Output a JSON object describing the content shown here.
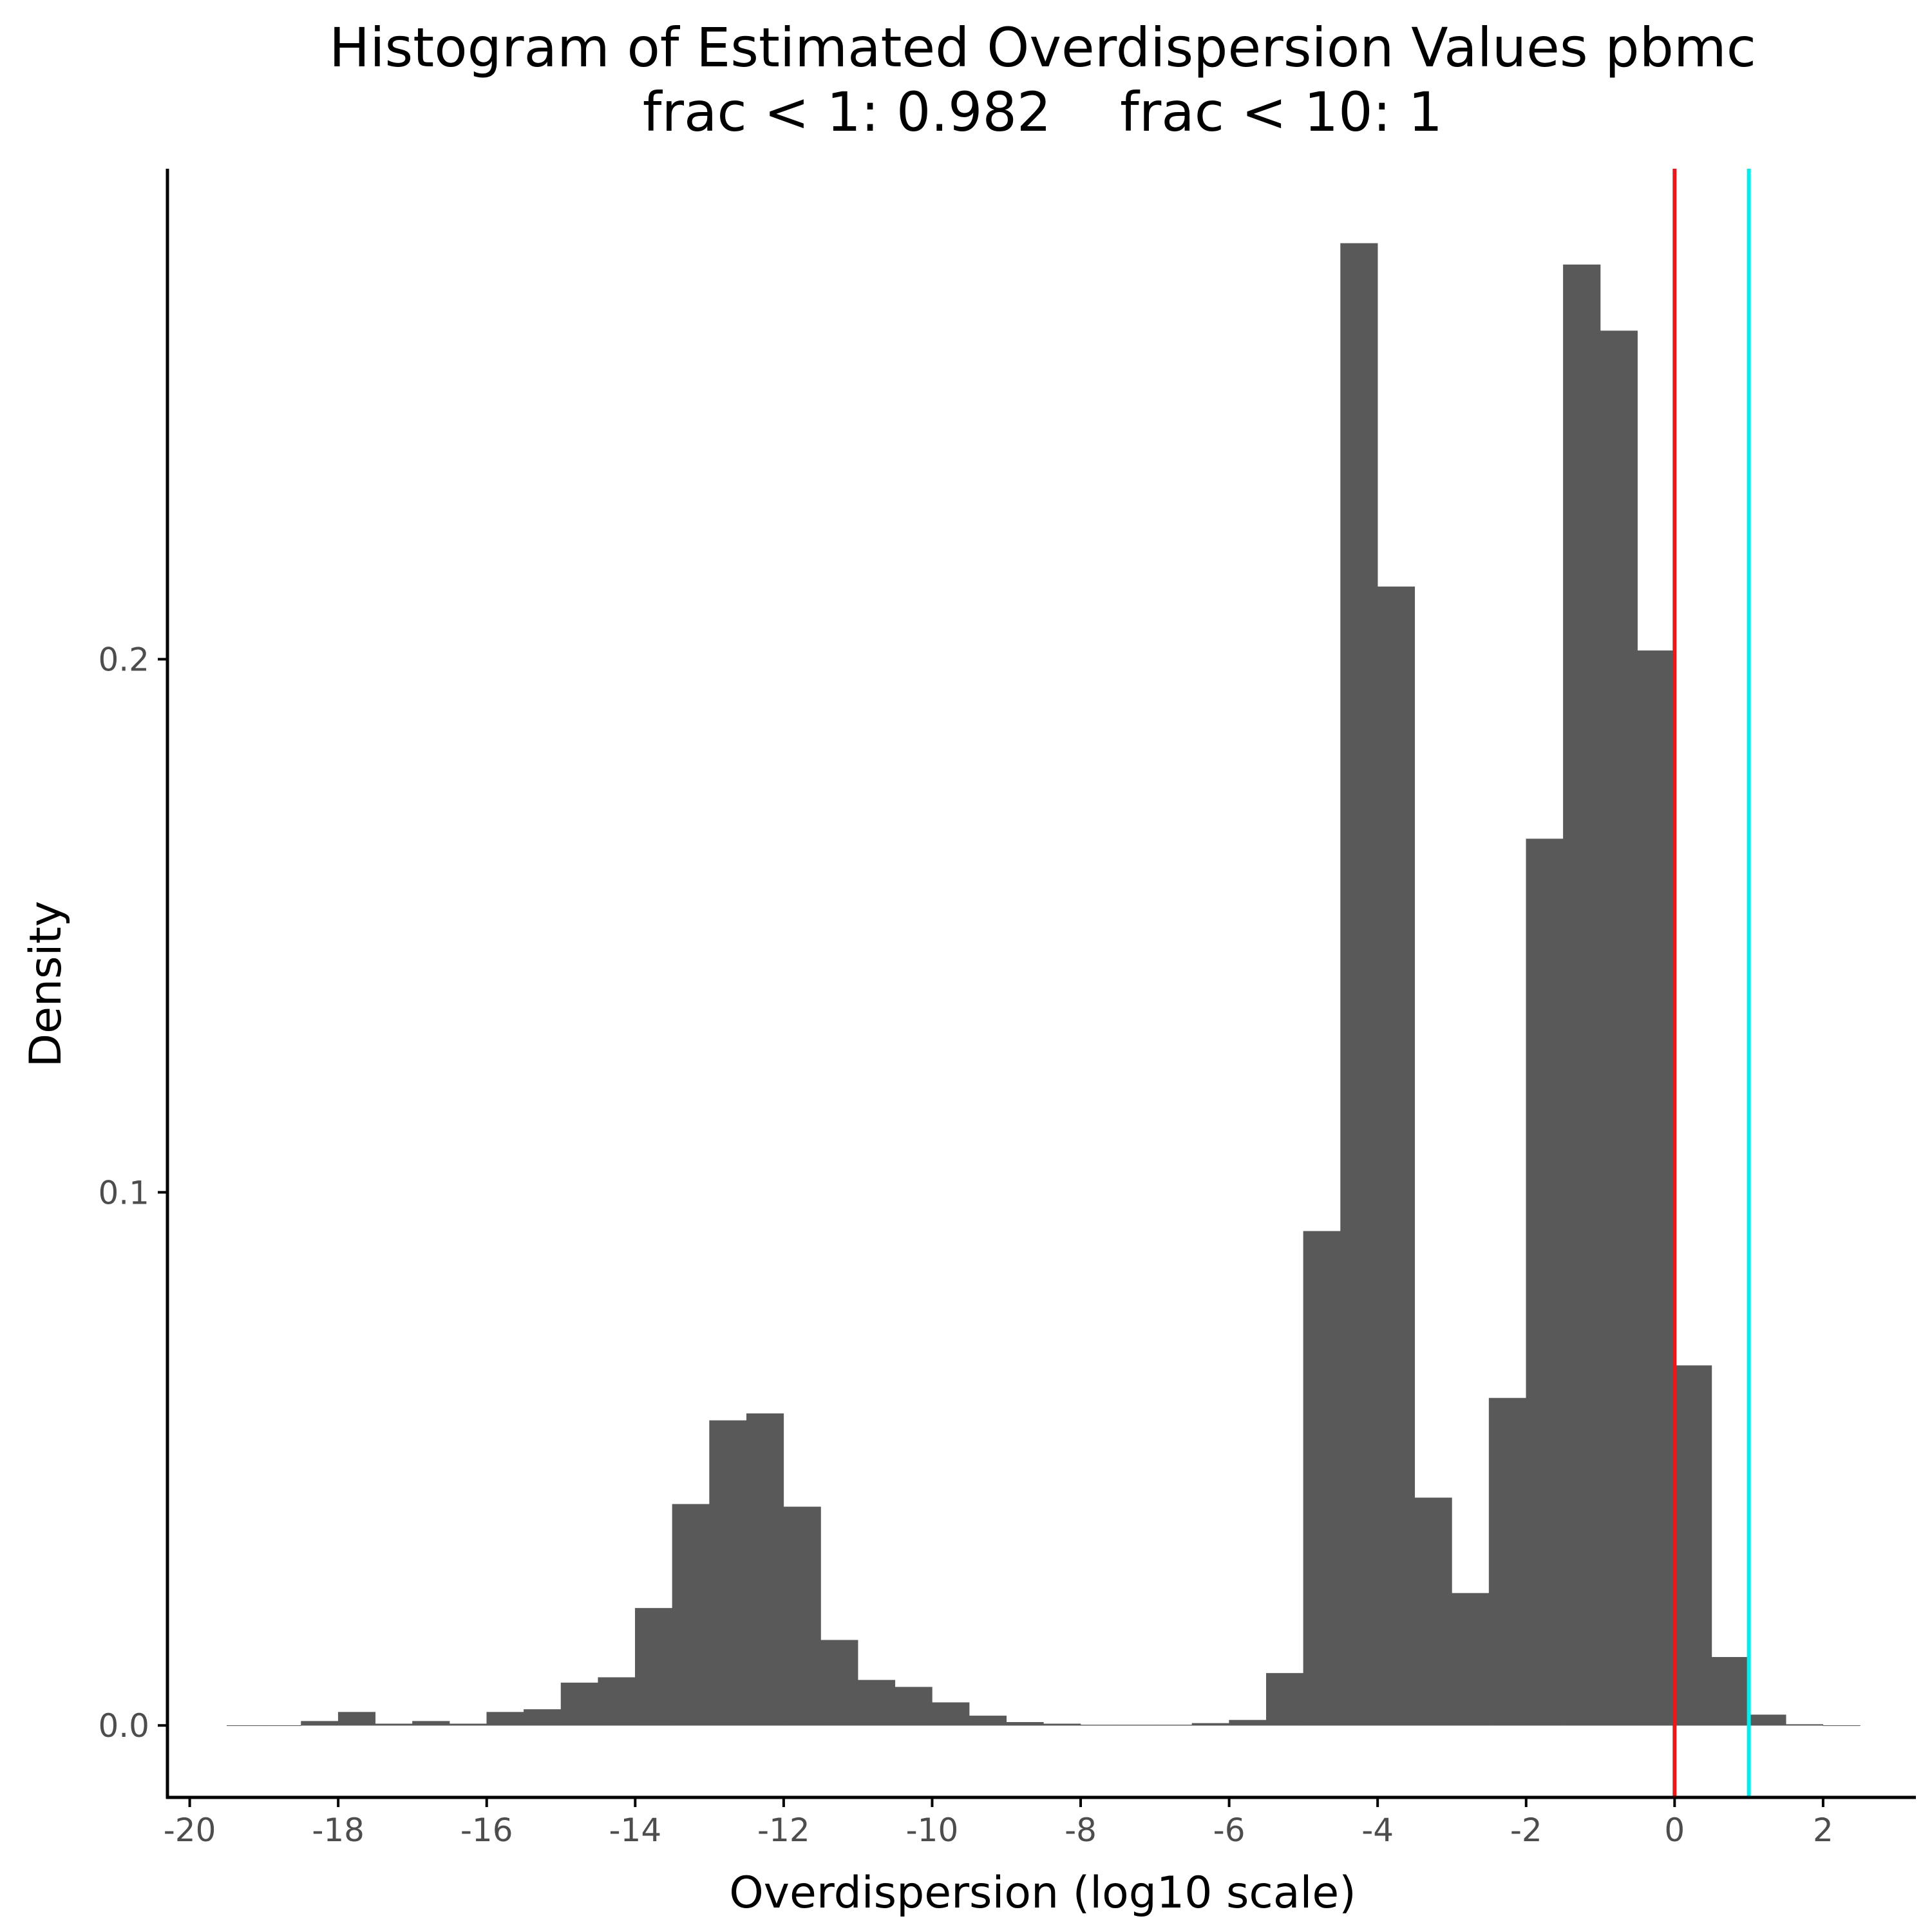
{
  "chart_data": {
    "type": "bar",
    "title": "Histogram of Estimated Overdispersion Values pbmc",
    "subtitle": "frac < 1: 0.982    frac < 10: 1",
    "xlabel": "Overdispersion (log10 scale)",
    "ylabel": "Density",
    "xlim": [
      -20.3,
      3.25
    ],
    "ylim": [
      -0.0135,
      0.292
    ],
    "x_ticks": [
      -20,
      -18,
      -16,
      -14,
      -12,
      -10,
      -8,
      -6,
      -4,
      -2,
      0,
      2
    ],
    "x_tick_labels": [
      "-20",
      "-18",
      "-16",
      "-14",
      "-12",
      "-10",
      "-8",
      "-6",
      "-4",
      "-2",
      "0",
      "2"
    ],
    "y_ticks": [
      0.0,
      0.1,
      0.2
    ],
    "y_tick_labels": [
      "0.0",
      "0.1",
      "0.2"
    ],
    "grid": false,
    "bin_width": 0.5,
    "bins": [
      {
        "x": -19.25,
        "density": 0.0
      },
      {
        "x": -18.75,
        "density": 0.0
      },
      {
        "x": -18.25,
        "density": 0.0008
      },
      {
        "x": -17.75,
        "density": 0.0025
      },
      {
        "x": -17.25,
        "density": 0.0003
      },
      {
        "x": -16.75,
        "density": 0.0008
      },
      {
        "x": -16.25,
        "density": 0.0003
      },
      {
        "x": -15.75,
        "density": 0.0025
      },
      {
        "x": -15.25,
        "density": 0.003
      },
      {
        "x": -14.75,
        "density": 0.008
      },
      {
        "x": -14.25,
        "density": 0.009
      },
      {
        "x": -13.75,
        "density": 0.022
      },
      {
        "x": -13.25,
        "density": 0.0415
      },
      {
        "x": -12.75,
        "density": 0.0572
      },
      {
        "x": -12.25,
        "density": 0.0585
      },
      {
        "x": -11.75,
        "density": 0.041
      },
      {
        "x": -11.25,
        "density": 0.016
      },
      {
        "x": -10.75,
        "density": 0.0085
      },
      {
        "x": -10.25,
        "density": 0.0072
      },
      {
        "x": -9.75,
        "density": 0.0043
      },
      {
        "x": -9.25,
        "density": 0.0018
      },
      {
        "x": -8.75,
        "density": 0.0006
      },
      {
        "x": -8.25,
        "density": 0.0003
      },
      {
        "x": -7.75,
        "density": 0.0001
      },
      {
        "x": -7.25,
        "density": 0.0001
      },
      {
        "x": -6.75,
        "density": 0.0001
      },
      {
        "x": -6.25,
        "density": 0.0004
      },
      {
        "x": -5.75,
        "density": 0.001
      },
      {
        "x": -5.25,
        "density": 0.0098
      },
      {
        "x": -4.75,
        "density": 0.0927
      },
      {
        "x": -4.25,
        "density": 0.278
      },
      {
        "x": -3.75,
        "density": 0.2136
      },
      {
        "x": -3.25,
        "density": 0.0427
      },
      {
        "x": -2.75,
        "density": 0.0248
      },
      {
        "x": -2.25,
        "density": 0.0614
      },
      {
        "x": -1.75,
        "density": 0.1663
      },
      {
        "x": -1.25,
        "density": 0.274
      },
      {
        "x": -0.75,
        "density": 0.2616
      },
      {
        "x": -0.25,
        "density": 0.2016
      },
      {
        "x": 0.25,
        "density": 0.0675
      },
      {
        "x": 0.75,
        "density": 0.0128
      },
      {
        "x": 1.25,
        "density": 0.002
      },
      {
        "x": 1.75,
        "density": 0.0002
      },
      {
        "x": 2.25,
        "density": 0.0
      }
    ],
    "vlines": [
      {
        "x": 0,
        "color": "#e41a1c"
      },
      {
        "x": 1,
        "color": "#00eeee"
      }
    ],
    "colors": {
      "bar_fill": "#595959",
      "axis": "#000000",
      "tick_label": "#4d4d4d",
      "background": "#ffffff"
    }
  }
}
